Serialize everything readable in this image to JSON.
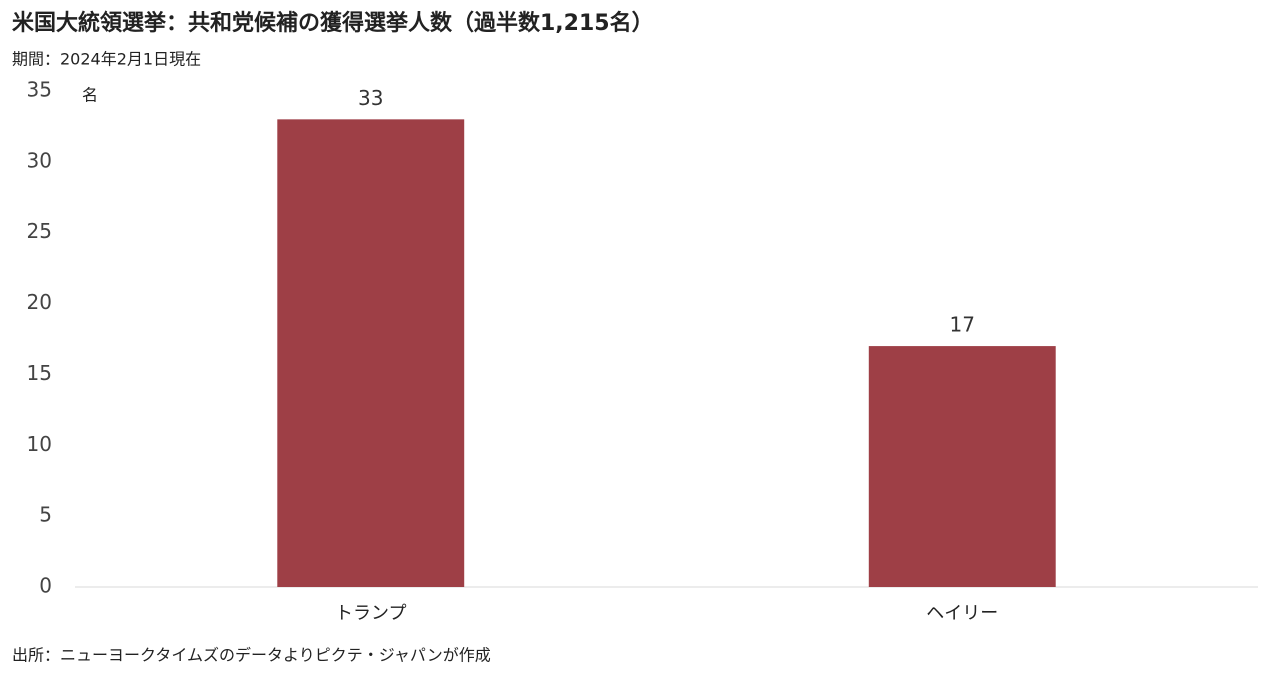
{
  "chart_data": {
    "type": "bar",
    "title": "米国大統領選挙：共和党候補の獲得選挙人数（過半数1,215名）",
    "subtitle": "期間：2024年2月1日現在",
    "y_unit": "名",
    "source": "出所：ニューヨークタイムズのデータよりピクテ・ジャパンが作成",
    "categories": [
      "トランプ",
      "ヘイリー"
    ],
    "values": [
      33,
      17
    ],
    "color": "#9e3f46",
    "ylim": [
      0,
      35
    ],
    "yticks": [
      0,
      5,
      10,
      15,
      20,
      25,
      30,
      35
    ],
    "grid": false
  }
}
